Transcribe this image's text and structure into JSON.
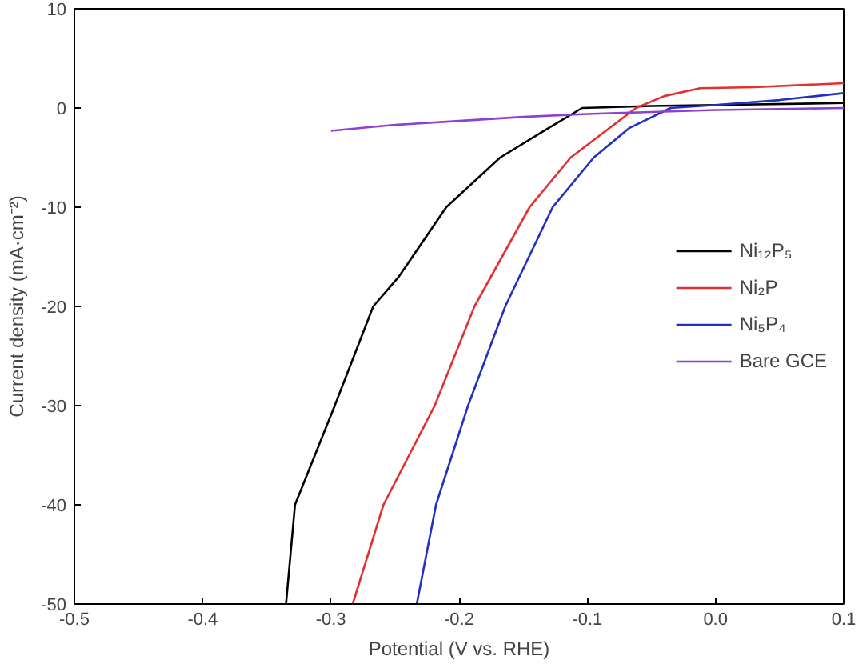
{
  "chart_data": {
    "type": "line",
    "xlabel": "Potential (V vs. RHE)",
    "ylabel": "Current density (mA·cm⁻²)",
    "xlim": [
      -0.5,
      0.1
    ],
    "ylim": [
      -50,
      10
    ],
    "xticks": [
      {
        "value": -0.5,
        "label": "-0.5"
      },
      {
        "value": -0.4,
        "label": "-0.4"
      },
      {
        "value": -0.3,
        "label": "-0.3"
      },
      {
        "value": -0.2,
        "label": "-0.2"
      },
      {
        "value": -0.1,
        "label": "-0.1"
      },
      {
        "value": 0,
        "label": "0.0"
      },
      {
        "value": 0.1,
        "label": "0.1"
      }
    ],
    "yticks": [
      -50,
      -40,
      -30,
      -20,
      -10,
      0,
      10
    ],
    "grid": false,
    "legend": "right",
    "marker": "none",
    "line_style": "solid",
    "series": [
      {
        "name": "Ni₁₂P₅",
        "color": "#000000",
        "x": [
          -0.335,
          -0.328,
          -0.297,
          -0.267,
          -0.247,
          -0.21,
          -0.168,
          -0.13,
          -0.104,
          -0.05,
          0.0,
          0.1
        ],
        "values": [
          -50,
          -40,
          -30,
          -20,
          -17,
          -10,
          -5,
          -2,
          0,
          0.2,
          0.3,
          0.5
        ]
      },
      {
        "name": "Ni₂P",
        "color": "#e03030",
        "x": [
          -0.283,
          -0.259,
          -0.219,
          -0.188,
          -0.145,
          -0.113,
          -0.062,
          -0.04,
          -0.012,
          0.03,
          0.1
        ],
        "values": [
          -50,
          -40,
          -30,
          -20,
          -10,
          -5,
          0,
          1.2,
          2,
          2.1,
          2.5
        ]
      },
      {
        "name": "Ni₅P₄",
        "color": "#2030c0",
        "x": [
          -0.233,
          -0.218,
          -0.193,
          -0.164,
          -0.127,
          -0.095,
          -0.067,
          -0.035,
          0.0,
          0.05,
          0.1
        ],
        "values": [
          -50,
          -40,
          -30,
          -20,
          -10,
          -5,
          -2,
          0,
          0.3,
          0.8,
          1.5
        ]
      },
      {
        "name": "Bare GCE",
        "color": "#9040d0",
        "x": [
          -0.3,
          -0.25,
          -0.2,
          -0.15,
          -0.1,
          -0.05,
          0.0,
          0.05,
          0.1
        ],
        "values": [
          -2.3,
          -1.7,
          -1.3,
          -0.9,
          -0.6,
          -0.4,
          -0.2,
          -0.1,
          0
        ]
      }
    ]
  }
}
